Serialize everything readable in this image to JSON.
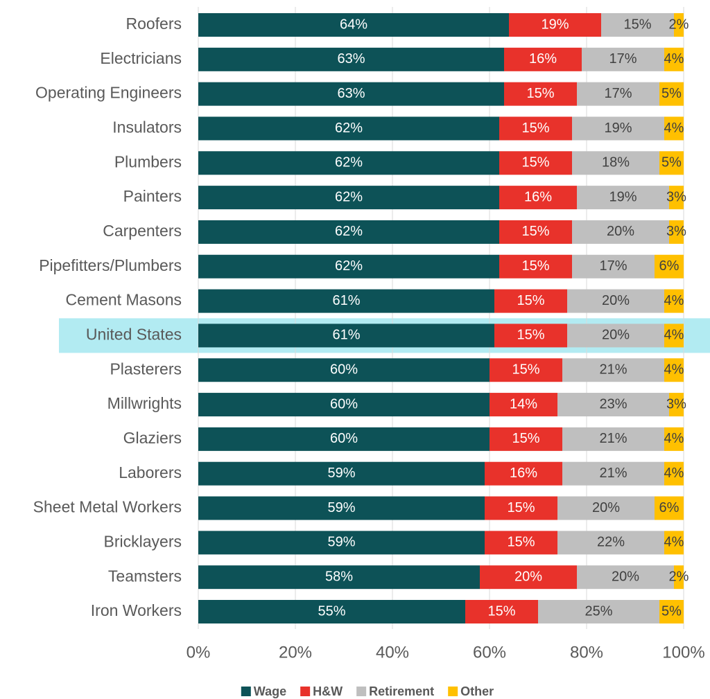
{
  "chart_data": {
    "type": "stacked_bar_horizontal",
    "categories": [
      "Roofers",
      "Electricians",
      "Operating Engineers",
      "Insulators",
      "Plumbers",
      "Painters",
      "Carpenters",
      "Pipefitters/Plumbers",
      "Cement Masons",
      "United States",
      "Plasterers",
      "Millwrights",
      "Glaziers",
      "Laborers",
      "Sheet Metal Workers",
      "Bricklayers",
      "Teamsters",
      "Iron Workers"
    ],
    "series": [
      {
        "name": "Wage",
        "color": "#0d5257",
        "label_color": "#ffffff",
        "values": [
          64,
          63,
          63,
          62,
          62,
          62,
          62,
          62,
          61,
          61,
          60,
          60,
          60,
          59,
          59,
          59,
          58,
          55
        ],
        "value_labels": [
          "64%",
          "63%",
          "63%",
          "62%",
          "62%",
          "62%",
          "62%",
          "62%",
          "61%",
          "61%",
          "60%",
          "60%",
          "60%",
          "59%",
          "59%",
          "59%",
          "58%",
          "55%"
        ]
      },
      {
        "name": "H&W",
        "color": "#e8322b",
        "label_color": "#ffffff",
        "values": [
          19,
          16,
          15,
          15,
          15,
          16,
          15,
          15,
          15,
          15,
          15,
          14,
          15,
          16,
          15,
          15,
          20,
          15
        ],
        "value_labels": [
          "19%",
          "16%",
          "15%",
          "15%",
          "15%",
          "16%",
          "15%",
          "15%",
          "15%",
          "15%",
          "15%",
          "14%",
          "15%",
          "16%",
          "15%",
          "15%",
          "20%",
          "15%"
        ]
      },
      {
        "name": "Retirement",
        "color": "#bfbfbf",
        "label_color": "#404040",
        "values": [
          15,
          17,
          17,
          19,
          18,
          19,
          20,
          17,
          20,
          20,
          21,
          23,
          21,
          21,
          20,
          22,
          20,
          25
        ],
        "value_labels": [
          "15%",
          "17%",
          "17%",
          "19%",
          "18%",
          "19%",
          "20%",
          "17%",
          "20%",
          "20%",
          "21%",
          "23%",
          "21%",
          "21%",
          "20%",
          "22%",
          "20%",
          "25%"
        ]
      },
      {
        "name": "Other",
        "color": "#ffc000",
        "label_color": "#404040",
        "values": [
          2,
          4,
          5,
          4,
          5,
          3,
          3,
          6,
          4,
          4,
          4,
          3,
          4,
          4,
          6,
          4,
          2,
          5
        ],
        "value_labels": [
          "2%",
          "4%",
          "5%",
          "4%",
          "5%",
          "3%",
          "3%",
          "6%",
          "4%",
          "4%",
          "4%",
          "3%",
          "4%",
          "4%",
          "6%",
          "4%",
          "2%",
          "5%"
        ]
      }
    ],
    "xlim": [
      0,
      100
    ],
    "xticks": [
      {
        "value": 0,
        "label": "0%"
      },
      {
        "value": 20,
        "label": "20%"
      },
      {
        "value": 40,
        "label": "40%"
      },
      {
        "value": 60,
        "label": "60%"
      },
      {
        "value": 80,
        "label": "80%"
      },
      {
        "value": 100,
        "label": "100%"
      }
    ],
    "grid": true,
    "highlight": {
      "category": 9,
      "color": "#b2ebf2"
    },
    "legend": "bottom"
  }
}
